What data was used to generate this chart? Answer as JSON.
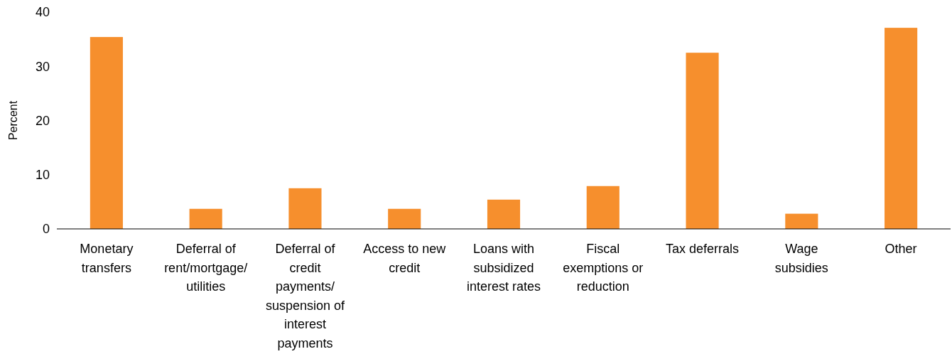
{
  "chart_data": {
    "type": "bar",
    "ylabel": "Percent",
    "categories": [
      "Monetary transfers",
      "Deferral of rent/mortgage/ utilities",
      "Deferral of credit payments/ suspension of interest payments",
      "Access to new credit",
      "Loans with subsidized interest rates",
      "Fiscal exemptions or reduction",
      "Tax deferrals",
      "Wage subsidies",
      "Other"
    ],
    "values": [
      35.4,
      3.7,
      7.5,
      3.7,
      5.4,
      7.9,
      32.5,
      2.8,
      37.1
    ],
    "color": "#f68f2d",
    "ylim": [
      0,
      40
    ],
    "yticks": [
      0,
      10,
      20,
      30,
      40
    ],
    "grid": false
  }
}
